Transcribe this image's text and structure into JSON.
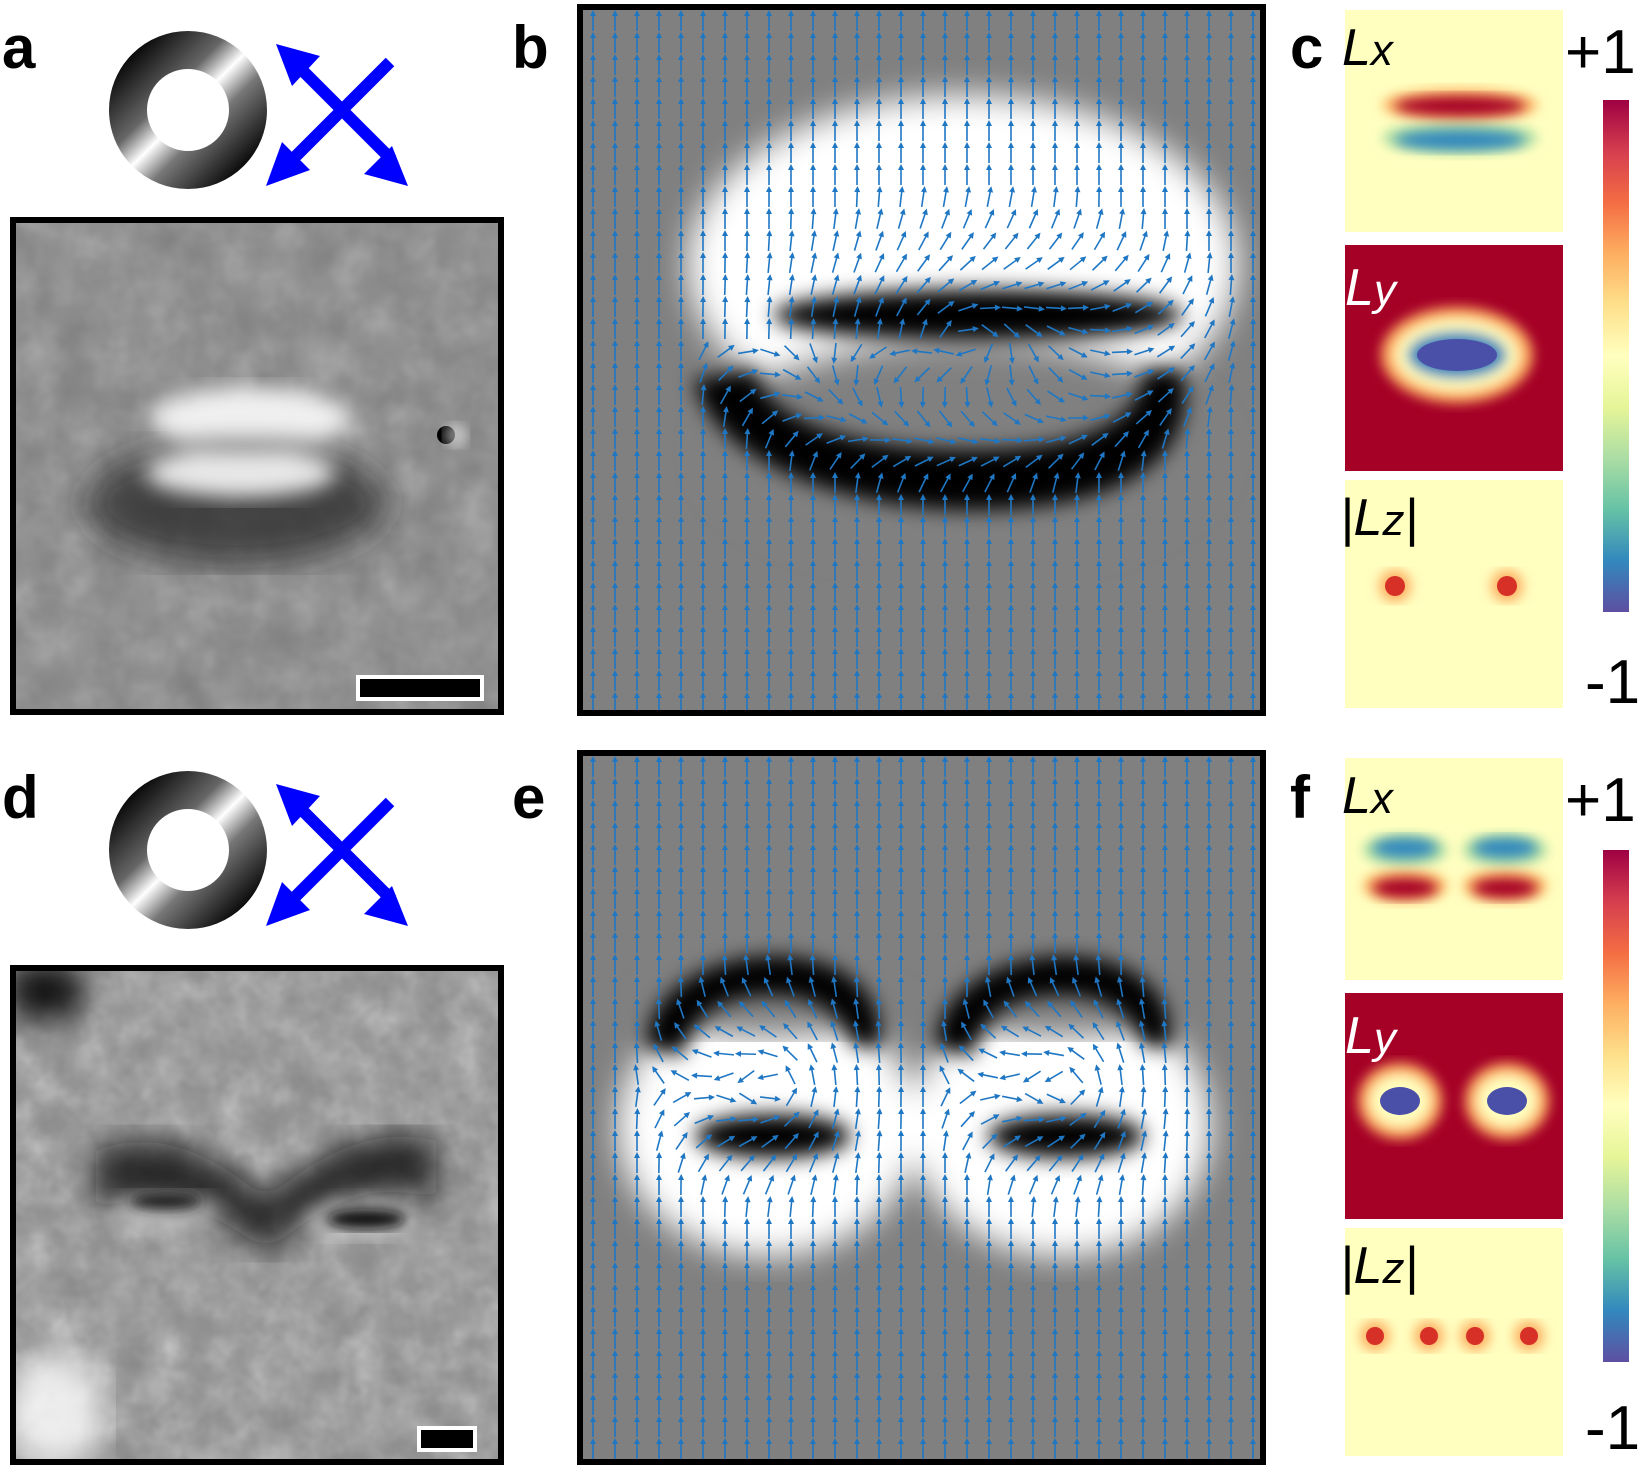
{
  "figure": {
    "rows": [
      {
        "panels": {
          "image": {
            "label": "a"
          },
          "simulation": {
            "label": "b"
          },
          "components": {
            "label": "c",
            "maps": [
              {
                "name": "Lx",
                "text": "L",
                "sub": "x"
              },
              {
                "name": "Ly",
                "text": "L",
                "sub": "y"
              },
              {
                "name": "Lz",
                "text": "|L",
                "sub": "z",
                "suffix": "|"
              }
            ],
            "colorbar": {
              "max": "+1",
              "min": "-1"
            }
          }
        }
      },
      {
        "panels": {
          "image": {
            "label": "d"
          },
          "simulation": {
            "label": "e"
          },
          "components": {
            "label": "f",
            "maps": [
              {
                "name": "Lx",
                "text": "L",
                "sub": "x"
              },
              {
                "name": "Ly",
                "text": "L",
                "sub": "y"
              },
              {
                "name": "Lz",
                "text": "|L",
                "sub": "z",
                "suffix": "|"
              }
            ],
            "colorbar": {
              "max": "+1",
              "min": "-1"
            }
          }
        }
      }
    ],
    "colors": {
      "arrow": "#1f77c4",
      "indicator": "#0000ff",
      "red": "#a50026",
      "cream": "#ffffc0",
      "blue": "#4a4fa8"
    }
  }
}
